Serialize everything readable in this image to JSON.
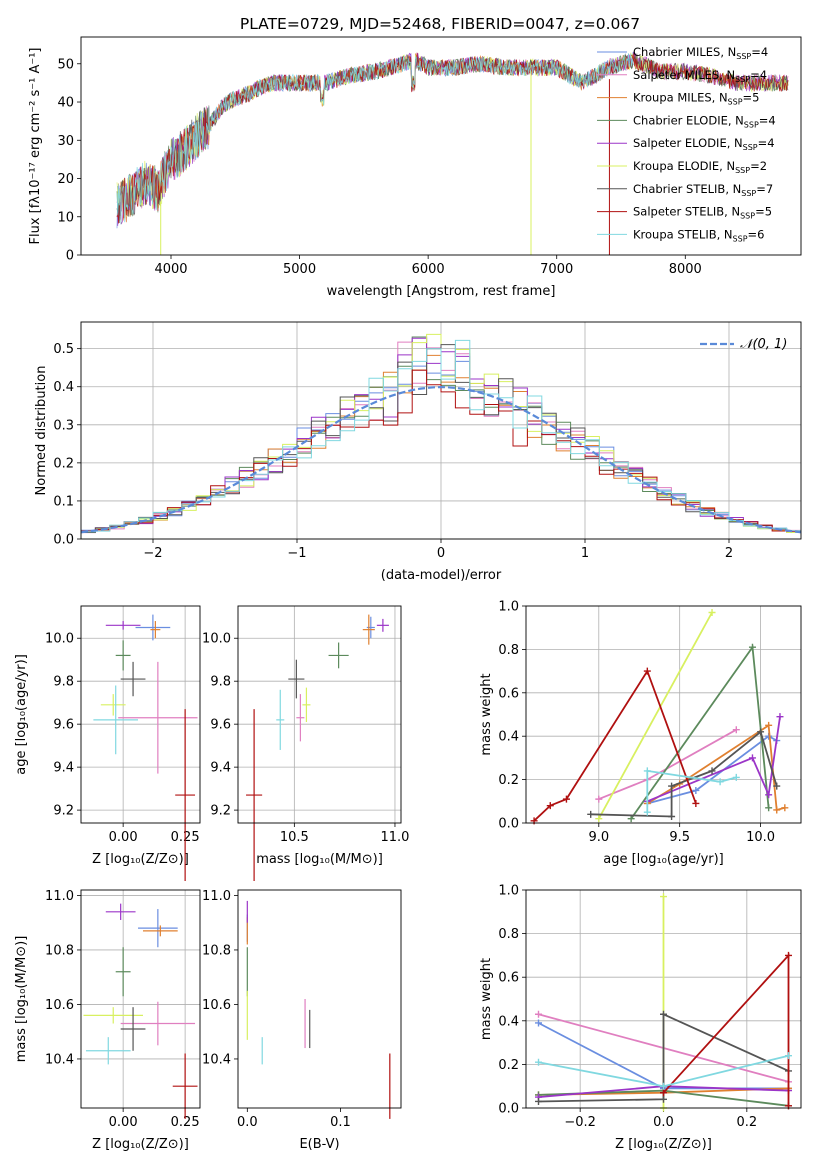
{
  "figure": {
    "title": "PLATE=0729, MJD=52468, FIBERID=0047, z=0.067"
  },
  "series": [
    {
      "name": "Chabrier MILES",
      "nssp": "4",
      "color": "#6a8ee0"
    },
    {
      "name": "Salpeter MILES",
      "nssp": "4",
      "color": "#e07fc0"
    },
    {
      "name": "Kroupa MILES",
      "nssp": "5",
      "color": "#e08030"
    },
    {
      "name": "Chabrier ELODIE",
      "nssp": "4",
      "color": "#5c8a5c"
    },
    {
      "name": "Salpeter ELODIE",
      "nssp": "4",
      "color": "#9b35c8"
    },
    {
      "name": "Kroupa ELODIE",
      "nssp": "2",
      "color": "#d8f060"
    },
    {
      "name": "Chabrier STELIB",
      "nssp": "7",
      "color": "#555555"
    },
    {
      "name": "Salpeter STELIB",
      "nssp": "5",
      "color": "#b01010"
    },
    {
      "name": "Kroupa STELIB",
      "nssp": "6",
      "color": "#80d8e0"
    }
  ],
  "chart_data": [
    {
      "id": "spectrum",
      "type": "line",
      "xlabel": "wavelength [Angstrom, rest frame]",
      "ylabel": "Flux [fλ10⁻¹⁷ erg cm⁻² s⁻¹ A⁻¹]",
      "xlim": [
        3300,
        8900
      ],
      "ylim": [
        0,
        57
      ],
      "xticks": [
        4000,
        5000,
        6000,
        7000,
        8000
      ],
      "yticks": [
        0,
        10,
        20,
        30,
        40,
        50
      ],
      "x": [
        3600,
        3700,
        3800,
        3900,
        4000,
        4100,
        4200,
        4300,
        4400,
        4500,
        4600,
        4700,
        4800,
        4900,
        5000,
        5200,
        5400,
        5600,
        5800,
        5900,
        6000,
        6200,
        6400,
        6600,
        6800,
        7000,
        7200,
        7400,
        7600,
        7800,
        8000,
        8200,
        8400,
        8600,
        8800
      ],
      "y": [
        13,
        16,
        19,
        17,
        25,
        27,
        31,
        34,
        39,
        41,
        42,
        44,
        45,
        45,
        45,
        45,
        47,
        48,
        50,
        51,
        49,
        49,
        50,
        49,
        49,
        49,
        45,
        49,
        51,
        48,
        48,
        47,
        45,
        45,
        45
      ],
      "grid": false,
      "legend": "right"
    },
    {
      "id": "residuals",
      "type": "step",
      "xlabel": "(data-model)/error",
      "ylabel": "Normed distribution",
      "xlim": [
        -2.5,
        2.5
      ],
      "ylim": [
        0,
        0.57
      ],
      "xticks": [
        -2,
        -1,
        0,
        1,
        2
      ],
      "xtick_labels": [
        "−2",
        "−1",
        "0",
        "1",
        "2"
      ],
      "yticks": [
        0.0,
        0.1,
        0.2,
        0.3,
        0.4,
        0.5
      ],
      "ytick_labels": [
        "0.0",
        "0.1",
        "0.2",
        "0.3",
        "0.4",
        "0.5"
      ],
      "grid": true,
      "legend_label": "𝒩(0, 1)",
      "legend": "top-right",
      "reference_curve": "gaussian N(0,1)"
    },
    {
      "id": "age-vs-Z",
      "type": "errorbar",
      "xlabel": "Z [log₁₀(Z/Z⊙)]",
      "ylabel": "age  [log₁₀(age/yr)]",
      "xlim": [
        -0.17,
        0.31
      ],
      "ylim": [
        9.14,
        10.15
      ],
      "xticks": [
        0.0,
        0.25
      ],
      "xtick_labels": [
        "0.00",
        "0.25"
      ],
      "yticks": [
        9.2,
        9.4,
        9.6,
        9.8,
        10.0
      ],
      "ytick_labels": [
        "9.2",
        "9.4",
        "9.6",
        "9.8",
        "10.0"
      ],
      "grid": true,
      "points": [
        {
          "x": 0.12,
          "y": 10.05,
          "xerr": 0.07,
          "yerr": 0.06
        },
        {
          "x": 0.14,
          "y": 9.63,
          "xerr": 0.16,
          "yerr": 0.26
        },
        {
          "x": 0.13,
          "y": 10.04,
          "xerr": 0.02,
          "yerr": 0.04
        },
        {
          "x": 0.0,
          "y": 9.92,
          "xerr": 0.03,
          "yerr": 0.07
        },
        {
          "x": 0.0,
          "y": 10.06,
          "xerr": 0.07,
          "yerr": 0.02
        },
        {
          "x": -0.04,
          "y": 9.69,
          "xerr": 0.05,
          "yerr": 0.05
        },
        {
          "x": 0.04,
          "y": 9.81,
          "xerr": 0.05,
          "yerr": 0.08
        },
        {
          "x": 0.25,
          "y": 9.27,
          "xerr": 0.04,
          "yerr": 0.4
        },
        {
          "x": -0.03,
          "y": 9.62,
          "xerr": 0.09,
          "yerr": 0.16
        }
      ]
    },
    {
      "id": "age-vs-mass",
      "type": "errorbar",
      "xlabel": "mass [log₁₀(M/M⊙)]",
      "ylabel": "",
      "xlim": [
        10.22,
        11.03
      ],
      "ylim": [
        9.14,
        10.15
      ],
      "xticks": [
        10.5,
        11.0
      ],
      "xtick_labels": [
        "10.5",
        "11.0"
      ],
      "yticks": [
        9.2,
        9.4,
        9.6,
        9.8,
        10.0
      ],
      "ytick_labels": [
        "9.2",
        "9.4",
        "9.6",
        "9.8",
        "10.0"
      ],
      "grid": true,
      "points": [
        {
          "x": 10.88,
          "y": 10.05,
          "xerr": 0.02,
          "yerr": 0.05
        },
        {
          "x": 10.53,
          "y": 9.63,
          "xerr": 0.02,
          "yerr": 0.11
        },
        {
          "x": 10.87,
          "y": 10.04,
          "xerr": 0.03,
          "yerr": 0.07
        },
        {
          "x": 10.72,
          "y": 9.92,
          "xerr": 0.05,
          "yerr": 0.06
        },
        {
          "x": 10.94,
          "y": 10.06,
          "xerr": 0.03,
          "yerr": 0.03
        },
        {
          "x": 10.56,
          "y": 9.69,
          "xerr": 0.02,
          "yerr": 0.08
        },
        {
          "x": 10.51,
          "y": 9.81,
          "xerr": 0.04,
          "yerr": 0.09
        },
        {
          "x": 10.3,
          "y": 9.27,
          "xerr": 0.04,
          "yerr": 0.4
        },
        {
          "x": 10.43,
          "y": 9.62,
          "xerr": 0.02,
          "yerr": 0.14
        }
      ]
    },
    {
      "id": "weight-vs-age",
      "type": "line",
      "xlabel": "age  [log₁₀(age/yr)]",
      "ylabel": "mass weight",
      "xlim": [
        8.55,
        10.25
      ],
      "ylim": [
        0.0,
        1.0
      ],
      "xticks": [
        9.0,
        9.5,
        10.0
      ],
      "xtick_labels": [
        "9.0",
        "9.5",
        "10.0"
      ],
      "yticks": [
        0.0,
        0.2,
        0.4,
        0.6,
        0.8,
        1.0
      ],
      "ytick_labels": [
        "0.0",
        "0.2",
        "0.4",
        "0.6",
        "0.8",
        "1.0"
      ],
      "grid": true,
      "lines": [
        {
          "x": [
            9.3,
            9.6,
            10.05,
            10.1
          ],
          "y": [
            0.09,
            0.15,
            0.4,
            0.38
          ]
        },
        {
          "x": [
            9.0,
            9.3,
            9.85
          ],
          "y": [
            0.11,
            0.2,
            0.43
          ]
        },
        {
          "x": [
            9.3,
            9.5,
            10.05,
            10.1,
            10.15
          ],
          "y": [
            0.09,
            0.18,
            0.45,
            0.06,
            0.07
          ]
        },
        {
          "x": [
            9.2,
            9.95,
            10.05
          ],
          "y": [
            0.02,
            0.81,
            0.07
          ]
        },
        {
          "x": [
            9.3,
            9.95,
            10.05,
            10.12
          ],
          "y": [
            0.1,
            0.3,
            0.13,
            0.49
          ]
        },
        {
          "x": [
            9.0,
            9.7
          ],
          "y": [
            0.02,
            0.97
          ]
        },
        {
          "x": [
            8.95,
            9.45,
            9.45,
            9.7,
            10.0,
            10.1
          ],
          "y": [
            0.04,
            0.03,
            0.17,
            0.24,
            0.42,
            0.17
          ]
        },
        {
          "x": [
            8.6,
            8.7,
            8.8,
            9.3,
            9.6
          ],
          "y": [
            0.01,
            0.08,
            0.11,
            0.7,
            0.09
          ]
        },
        {
          "x": [
            9.3,
            9.3,
            9.75,
            9.85
          ],
          "y": [
            0.05,
            0.24,
            0.19,
            0.21
          ]
        }
      ]
    },
    {
      "id": "mass-vs-Z",
      "type": "errorbar",
      "xlabel": "Z [log₁₀(Z/Z⊙)]",
      "ylabel": "mass [log₁₀(M/M⊙)]",
      "xlim": [
        -0.17,
        0.31
      ],
      "ylim": [
        10.22,
        11.02
      ],
      "xticks": [
        0.0,
        0.25
      ],
      "xtick_labels": [
        "0.00",
        "0.25"
      ],
      "yticks": [
        10.4,
        10.6,
        10.8,
        11.0
      ],
      "ytick_labels": [
        "10.4",
        "10.6",
        "10.8",
        "11.0"
      ],
      "grid": true,
      "points": [
        {
          "x": 0.14,
          "y": 10.88,
          "xerr": 0.08,
          "yerr": 0.07
        },
        {
          "x": 0.14,
          "y": 10.53,
          "xerr": 0.15,
          "yerr": 0.08
        },
        {
          "x": 0.15,
          "y": 10.87,
          "xerr": 0.07,
          "yerr": 0.02
        },
        {
          "x": 0.0,
          "y": 10.72,
          "xerr": 0.03,
          "yerr": 0.09
        },
        {
          "x": -0.01,
          "y": 10.94,
          "xerr": 0.06,
          "yerr": 0.03
        },
        {
          "x": -0.04,
          "y": 10.56,
          "xerr": 0.12,
          "yerr": 0.03
        },
        {
          "x": 0.04,
          "y": 10.51,
          "xerr": 0.05,
          "yerr": 0.08
        },
        {
          "x": 0.25,
          "y": 10.3,
          "xerr": 0.05,
          "yerr": 0.12
        },
        {
          "x": -0.06,
          "y": 10.43,
          "xerr": 0.09,
          "yerr": 0.05
        }
      ]
    },
    {
      "id": "mass-vs-EBV",
      "type": "errorbar",
      "xlabel": "E(B-V)",
      "ylabel": "",
      "xlim": [
        -0.01,
        0.165
      ],
      "ylim": [
        10.22,
        11.02
      ],
      "xticks": [
        0.0,
        0.1
      ],
      "xtick_labels": [
        "0.0",
        "0.1"
      ],
      "yticks": [
        10.4,
        10.6,
        10.8,
        11.0
      ],
      "ytick_labels": [
        "10.4",
        "10.6",
        "10.8",
        "11.0"
      ],
      "grid": false,
      "points": [
        {
          "x": 0.0,
          "y": 10.88,
          "xerr": 0.0,
          "yerr": 0.05
        },
        {
          "x": 0.062,
          "y": 10.53,
          "xerr": 0.0,
          "yerr": 0.09
        },
        {
          "x": 0.0,
          "y": 10.87,
          "xerr": 0.0,
          "yerr": 0.05
        },
        {
          "x": 0.0,
          "y": 10.72,
          "xerr": 0.0,
          "yerr": 0.09
        },
        {
          "x": 0.0,
          "y": 10.94,
          "xerr": 0.0,
          "yerr": 0.04
        },
        {
          "x": 0.0,
          "y": 10.56,
          "xerr": 0.0,
          "yerr": 0.09
        },
        {
          "x": 0.067,
          "y": 10.51,
          "xerr": 0.0,
          "yerr": 0.07
        },
        {
          "x": 0.153,
          "y": 10.3,
          "xerr": 0.0,
          "yerr": 0.12
        },
        {
          "x": 0.016,
          "y": 10.43,
          "xerr": 0.0,
          "yerr": 0.05
        }
      ]
    },
    {
      "id": "weight-vs-Z",
      "type": "line",
      "xlabel": "Z [log₁₀(Z/Z⊙)]",
      "ylabel": "mass weight",
      "xlim": [
        -0.33,
        0.33
      ],
      "ylim": [
        0.0,
        1.0
      ],
      "xticks": [
        -0.2,
        0.0,
        0.2
      ],
      "xtick_labels": [
        "−0.2",
        "0.0",
        "0.2"
      ],
      "yticks": [
        0.0,
        0.2,
        0.4,
        0.6,
        0.8,
        1.0
      ],
      "ytick_labels": [
        "0.0",
        "0.2",
        "0.4",
        "0.6",
        "0.8",
        "1.0"
      ],
      "grid": true,
      "lines": [
        {
          "x": [
            -0.3,
            0.0,
            0.3
          ],
          "y": [
            0.39,
            0.09,
            0.09
          ]
        },
        {
          "x": [
            -0.3,
            0.3
          ],
          "y": [
            0.43,
            0.12
          ]
        },
        {
          "x": [
            -0.3,
            0.0,
            0.3
          ],
          "y": [
            0.06,
            0.07,
            0.09
          ]
        },
        {
          "x": [
            -0.3,
            0.0,
            0.3
          ],
          "y": [
            0.06,
            0.08,
            0.01
          ]
        },
        {
          "x": [
            -0.3,
            0.0,
            0.3
          ],
          "y": [
            0.05,
            0.1,
            0.08
          ]
        },
        {
          "x": [
            0.0,
            0.0
          ],
          "y": [
            0.0,
            0.97
          ]
        },
        {
          "x": [
            -0.3,
            0.0,
            0.0,
            0.3
          ],
          "y": [
            0.03,
            0.04,
            0.43,
            0.17
          ]
        },
        {
          "x": [
            0.0,
            0.3,
            0.3
          ],
          "y": [
            0.07,
            0.7,
            0.01
          ]
        },
        {
          "x": [
            -0.3,
            0.0,
            0.3
          ],
          "y": [
            0.21,
            0.1,
            0.24
          ]
        }
      ]
    }
  ]
}
